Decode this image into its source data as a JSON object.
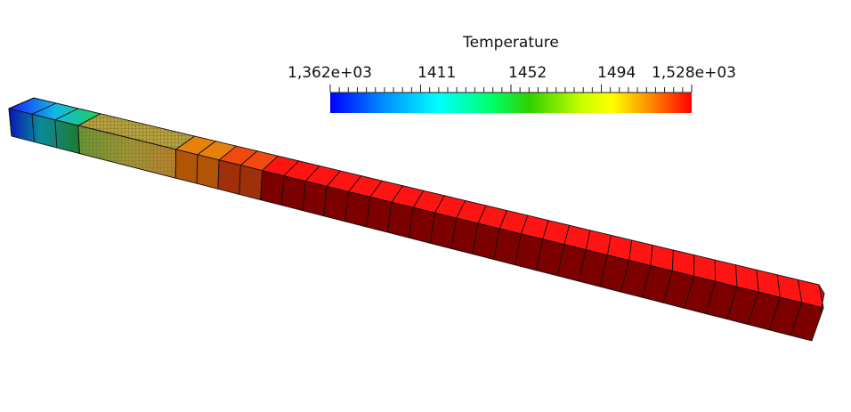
{
  "colorbar": {
    "title": "Temperature",
    "min_label": "1,362e+03",
    "tick_labels": [
      "1411",
      "1452",
      "1494"
    ],
    "max_label": "1,528e+03",
    "min": 1362,
    "max": 1528,
    "colormap": [
      "#0000ff",
      "#00a0ff",
      "#00ffff",
      "#00ff70",
      "#00d000",
      "#a0ff00",
      "#ffff00",
      "#ffa000",
      "#ff5000",
      "#ff0000"
    ]
  },
  "model": {
    "colors": {
      "cold_end": "#0a1ff0",
      "mid_teal": "#16c3c0",
      "mid_green": "#2aa84a",
      "mesh": "#b7a23e",
      "orange": "#e87a12",
      "red_top": "#ff1414",
      "red_side": "#7c0000",
      "edge": "#111111"
    }
  }
}
